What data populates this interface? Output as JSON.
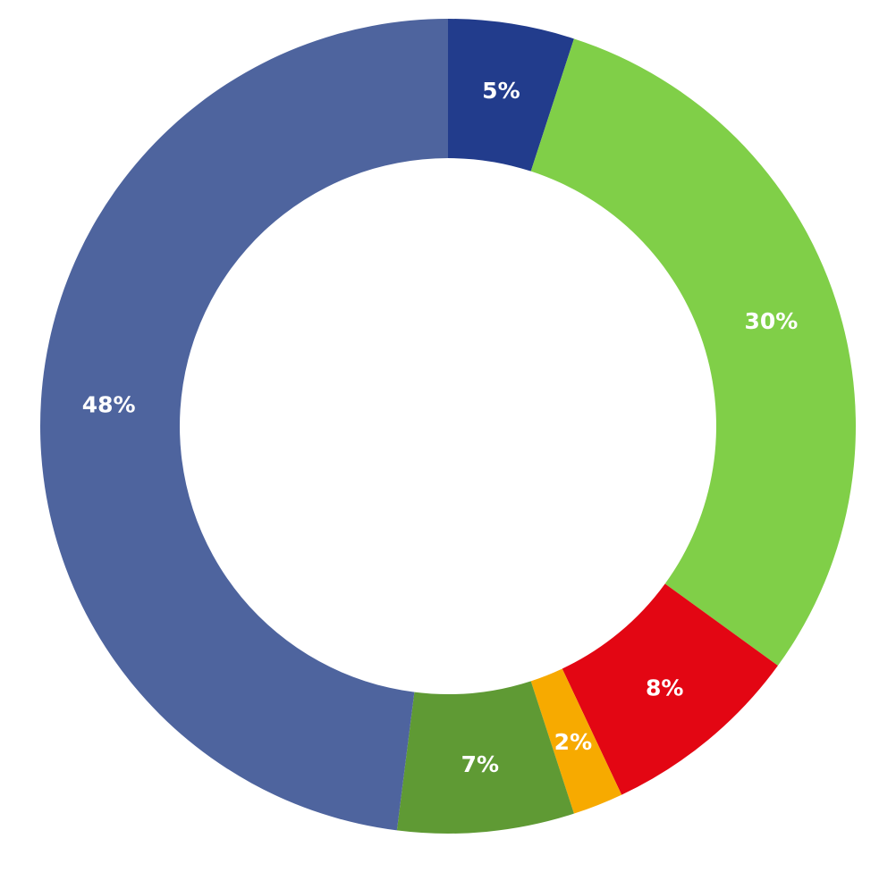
{
  "chart_data": {
    "type": "pie",
    "variant": "donut",
    "start": "top",
    "direction": "clockwise",
    "slices": [
      {
        "label": "5%",
        "value": 5,
        "color": "#223c8c"
      },
      {
        "label": "30%",
        "value": 30,
        "color": "#80cf48"
      },
      {
        "label": "8%",
        "value": 8,
        "color": "#e30613"
      },
      {
        "label": "2%",
        "value": 2,
        "color": "#f7aa00"
      },
      {
        "label": "7%",
        "value": 7,
        "color": "#5f9a34"
      },
      {
        "label": "48%",
        "value": 48,
        "color": "#4e649e"
      }
    ]
  }
}
